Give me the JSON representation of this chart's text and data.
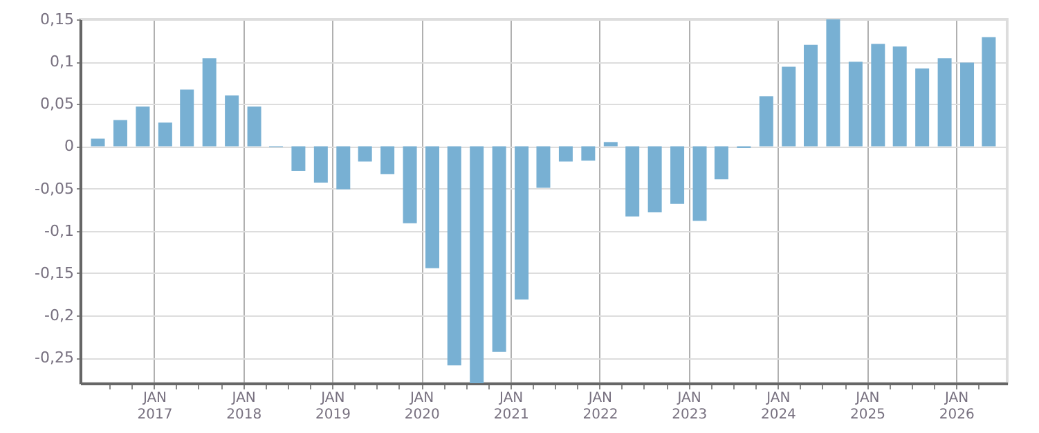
{
  "chart_data": {
    "type": "bar",
    "color": "#78b0d3",
    "x": [
      "2016-05-15",
      "2016-08-15",
      "2016-11-15",
      "2017-02-15",
      "2017-05-15",
      "2017-08-15",
      "2017-11-15",
      "2018-02-15",
      "2018-05-15",
      "2018-08-15",
      "2018-11-15",
      "2019-02-15",
      "2019-05-15",
      "2019-08-15",
      "2019-11-15",
      "2020-02-15",
      "2020-05-15",
      "2020-08-15",
      "2020-11-15",
      "2021-02-15",
      "2021-05-15",
      "2021-08-15",
      "2021-11-15",
      "2022-02-15",
      "2022-05-15",
      "2022-08-15",
      "2022-11-15",
      "2023-02-15",
      "2023-05-15",
      "2023-08-15",
      "2023-11-15",
      "2024-02-15",
      "2024-05-15",
      "2024-08-15",
      "2024-11-15",
      "2025-02-15",
      "2025-05-15",
      "2025-08-15",
      "2025-11-15",
      "2026-02-15",
      "2026-05-15"
    ],
    "values": [
      0.009,
      0.031,
      0.047,
      0.028,
      0.067,
      0.104,
      0.06,
      0.047,
      -0.001,
      -0.029,
      -0.043,
      -0.051,
      -0.018,
      -0.033,
      -0.091,
      -0.144,
      -0.259,
      -0.28,
      -0.243,
      -0.181,
      -0.049,
      -0.018,
      -0.017,
      0.005,
      -0.083,
      -0.078,
      -0.068,
      -0.088,
      -0.039,
      -0.002,
      0.059,
      0.094,
      0.12,
      0.15,
      0.1,
      0.121,
      0.118,
      0.092,
      0.104,
      0.099,
      0.129
    ],
    "xlim": [
      "2016-04-01",
      "2026-07-01"
    ],
    "xticks": [
      {
        "value": "2016-07-01",
        "label": null
      },
      {
        "value": "2016-10-01",
        "label": null
      },
      {
        "value": "2017-01-01",
        "label": "JAN 2017"
      },
      {
        "value": "2017-04-01",
        "label": null
      },
      {
        "value": "2017-07-01",
        "label": null
      },
      {
        "value": "2017-10-01",
        "label": null
      },
      {
        "value": "2018-01-01",
        "label": "JAN 2018"
      },
      {
        "value": "2018-04-01",
        "label": null
      },
      {
        "value": "2018-07-01",
        "label": null
      },
      {
        "value": "2018-10-01",
        "label": null
      },
      {
        "value": "2019-01-01",
        "label": "JAN 2019"
      },
      {
        "value": "2019-04-01",
        "label": null
      },
      {
        "value": "2019-07-01",
        "label": null
      },
      {
        "value": "2019-10-01",
        "label": null
      },
      {
        "value": "2020-01-01",
        "label": "JAN 2020"
      },
      {
        "value": "2020-04-01",
        "label": null
      },
      {
        "value": "2020-07-01",
        "label": null
      },
      {
        "value": "2020-10-01",
        "label": null
      },
      {
        "value": "2021-01-01",
        "label": "JAN 2021"
      },
      {
        "value": "2021-04-01",
        "label": null
      },
      {
        "value": "2021-07-01",
        "label": null
      },
      {
        "value": "2021-10-01",
        "label": null
      },
      {
        "value": "2022-01-01",
        "label": "JAN 2022"
      },
      {
        "value": "2022-04-01",
        "label": null
      },
      {
        "value": "2022-07-01",
        "label": null
      },
      {
        "value": "2022-10-01",
        "label": null
      },
      {
        "value": "2023-01-01",
        "label": "JAN 2023"
      },
      {
        "value": "2023-04-01",
        "label": null
      },
      {
        "value": "2023-07-01",
        "label": null
      },
      {
        "value": "2023-10-01",
        "label": null
      },
      {
        "value": "2024-01-01",
        "label": "JAN 2024"
      },
      {
        "value": "2024-04-01",
        "label": null
      },
      {
        "value": "2024-07-01",
        "label": null
      },
      {
        "value": "2024-10-01",
        "label": null
      },
      {
        "value": "2025-01-01",
        "label": "JAN 2025"
      },
      {
        "value": "2025-04-01",
        "label": null
      },
      {
        "value": "2025-07-01",
        "label": null
      },
      {
        "value": "2025-10-01",
        "label": null
      },
      {
        "value": "2026-01-01",
        "label": "JAN 2026"
      },
      {
        "value": "2026-04-01",
        "label": null
      }
    ],
    "ylim": [
      -0.28,
      0.15
    ],
    "yticks": [
      {
        "value": -0.25,
        "label": "-0,25"
      },
      {
        "value": -0.2,
        "label": "-0,2"
      },
      {
        "value": -0.15,
        "label": "-0,15"
      },
      {
        "value": -0.1,
        "label": "-0,1"
      },
      {
        "value": -0.05,
        "label": "-0,05"
      },
      {
        "value": 0,
        "label": "0"
      },
      {
        "value": 0.05,
        "label": "0,05"
      },
      {
        "value": 0.1,
        "label": "0,1"
      },
      {
        "value": 0.15,
        "label": "0,15"
      }
    ],
    "grid": true
  }
}
